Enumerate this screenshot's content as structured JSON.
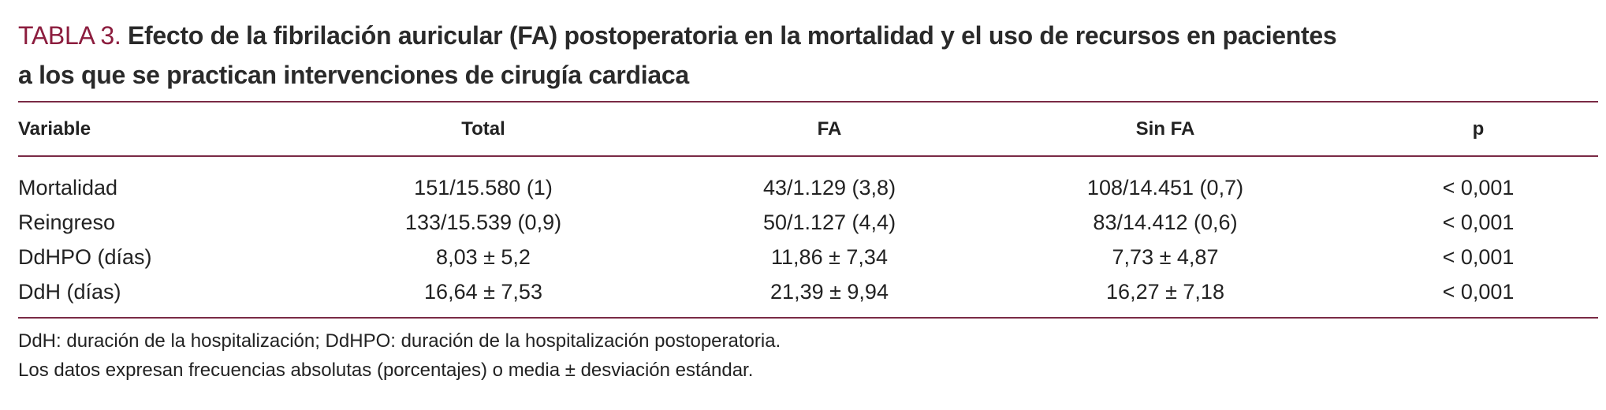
{
  "title": {
    "label": "TABLA 3.",
    "lines": [
      "Efecto de la fibrilación auricular (FA) postoperatoria en la mortalidad y el uso de recursos en pacientes",
      "a los que se practican intervenciones de cirugía cardiaca"
    ]
  },
  "table": {
    "header": [
      "Variable",
      "Total",
      "FA",
      "Sin FA",
      "p"
    ],
    "rows": [
      [
        "Mortalidad",
        "151/15.580 (1)",
        "43/1.129 (3,8)",
        "108/14.451 (0,7)",
        "< 0,001"
      ],
      [
        "Reingreso",
        "133/15.539 (0,9)",
        "50/1.127 (4,4)",
        "83/14.412 (0,6)",
        "< 0,001"
      ],
      [
        "DdHPO (días)",
        "8,03 ± 5,2",
        "11,86 ± 7,34",
        "7,73 ± 4,87",
        "< 0,001"
      ],
      [
        "DdH (días)",
        "16,64 ± 7,53",
        "21,39 ± 9,94",
        "16,27 ± 7,18",
        "< 0,001"
      ]
    ]
  },
  "notes": [
    "DdH: duración de la hospitalización; DdHPO: duración de la hospitalización postoperatoria.",
    "Los datos expresan frecuencias absolutas (porcentajes) o media ± desviación estándar."
  ]
}
